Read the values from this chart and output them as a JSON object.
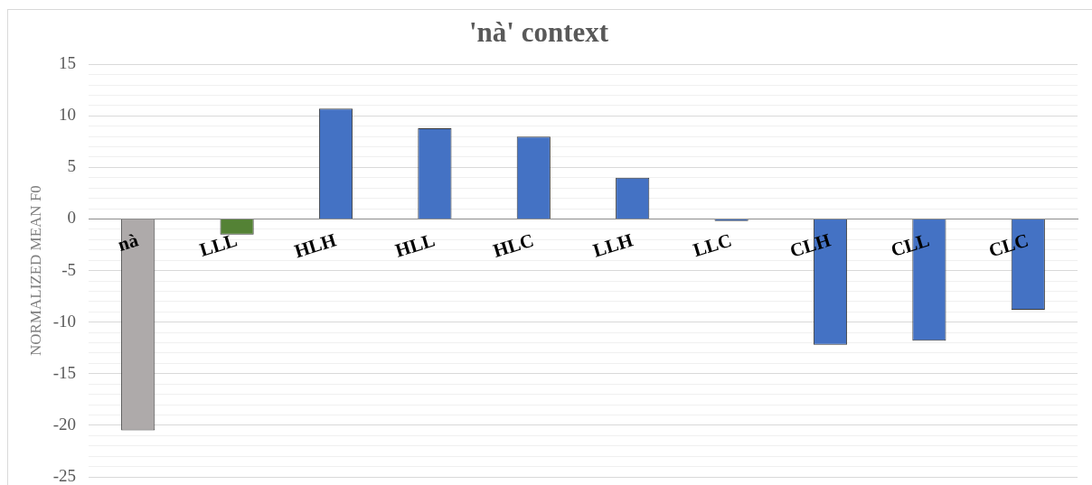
{
  "chart_data": {
    "type": "bar",
    "title": "'nà' context",
    "ylabel": "NORMALIZED MEAN F0",
    "categories": [
      "nà",
      "LLL",
      "HLH",
      "HLL",
      "HLC",
      "LLH",
      "LLC",
      "CLH",
      "CLL",
      "CLC"
    ],
    "values": [
      -20.5,
      -1.5,
      10.7,
      8.8,
      8.0,
      4.0,
      -0.2,
      -12.2,
      -11.8,
      -8.8
    ],
    "colors": [
      "#aeaaaa",
      "#548235",
      "#4472c4",
      "#4472c4",
      "#4472c4",
      "#4472c4",
      "#4472c4",
      "#4472c4",
      "#4472c4",
      "#4472c4"
    ],
    "ylim": [
      -25,
      15
    ],
    "yticks": [
      -25,
      {
        "value": -24,
        "label": null
      },
      {
        "value": -23,
        "label": null
      },
      {
        "value": -22,
        "label": null
      },
      {
        "value": -21,
        "label": null
      },
      -20,
      {
        "value": -19,
        "label": null
      },
      {
        "value": -18,
        "label": null
      },
      {
        "value": -17,
        "label": null
      },
      {
        "value": -16,
        "label": null
      },
      -15,
      {
        "value": -14,
        "label": null
      },
      {
        "value": -13,
        "label": null
      },
      {
        "value": -12,
        "label": null
      },
      {
        "value": -11,
        "label": null
      },
      -10,
      {
        "value": -9,
        "label": null
      },
      {
        "value": -8,
        "label": null
      },
      {
        "value": -7,
        "label": null
      },
      {
        "value": -6,
        "label": null
      },
      -5,
      {
        "value": -4,
        "label": null
      },
      {
        "value": -3,
        "label": null
      },
      {
        "value": -2,
        "label": null
      },
      {
        "value": -1,
        "label": null
      },
      0,
      {
        "value": 1,
        "label": null
      },
      {
        "value": 2,
        "label": null
      },
      {
        "value": 3,
        "label": null
      },
      {
        "value": 4,
        "label": null
      },
      5,
      {
        "value": 6,
        "label": null
      },
      {
        "value": 7,
        "label": null
      },
      {
        "value": 8,
        "label": null
      },
      {
        "value": 9,
        "label": null
      },
      10,
      {
        "value": 11,
        "label": null
      },
      {
        "value": 12,
        "label": null
      },
      {
        "value": 13,
        "label": null
      },
      {
        "value": 14,
        "label": null
      },
      15
    ],
    "grid": "y"
  }
}
